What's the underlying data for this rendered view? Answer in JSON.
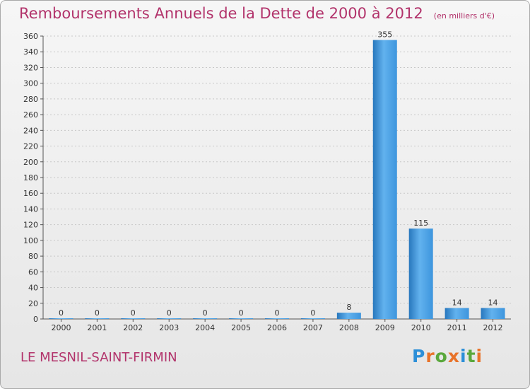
{
  "header": {
    "title": "Remboursements Annuels de la Dette de 2000 à 2012",
    "unit": "(en milliers d'€)"
  },
  "footer": {
    "commune": "LE MESNIL-SAINT-FIRMIN",
    "brand": "Proxiti",
    "brand_letters": [
      "P",
      "r",
      "o",
      "x",
      "i",
      "t",
      "i"
    ],
    "brand_colors": [
      "#2c8fd8",
      "#e8732a",
      "#5aa83c",
      "#e8732a",
      "#2c8fd8",
      "#5aa83c",
      "#e8732a"
    ]
  },
  "colors": {
    "title": "#b2336b",
    "bar": "#3d95dd",
    "bar_light": "#62b2ee",
    "bar_dark": "#2877bd",
    "grid": "#c8c8c8",
    "axis": "#555555"
  },
  "chart_data": {
    "type": "bar",
    "title": "Remboursements Annuels de la Dette de 2000 à 2012",
    "subtitle": "(en milliers d'€)",
    "xlabel": "",
    "ylabel": "",
    "categories": [
      "2000",
      "2001",
      "2002",
      "2003",
      "2004",
      "2005",
      "2006",
      "2007",
      "2008",
      "2009",
      "2010",
      "2011",
      "2012"
    ],
    "values": [
      0,
      0,
      0,
      0,
      0,
      0,
      0,
      0,
      8,
      355,
      115,
      14,
      14
    ],
    "data_labels": [
      "0",
      "0",
      "0",
      "0",
      "0",
      "0",
      "0",
      "0",
      "8",
      "355",
      "115",
      "14",
      "14"
    ],
    "ylim": [
      0,
      360
    ],
    "yticks": [
      0,
      20,
      40,
      60,
      80,
      100,
      120,
      140,
      160,
      180,
      200,
      220,
      240,
      260,
      280,
      300,
      320,
      340,
      360
    ],
    "grid": true,
    "legend": "none"
  }
}
